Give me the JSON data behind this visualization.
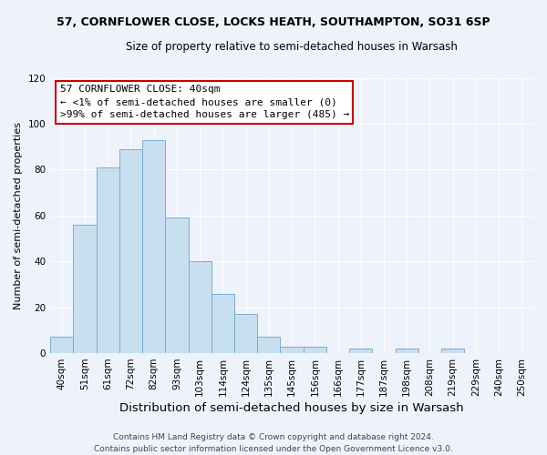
{
  "title": "57, CORNFLOWER CLOSE, LOCKS HEATH, SOUTHAMPTON, SO31 6SP",
  "subtitle": "Size of property relative to semi-detached houses in Warsash",
  "xlabel": "Distribution of semi-detached houses by size in Warsash",
  "ylabel": "Number of semi-detached properties",
  "bar_labels": [
    "40sqm",
    "51sqm",
    "61sqm",
    "72sqm",
    "82sqm",
    "93sqm",
    "103sqm",
    "114sqm",
    "124sqm",
    "135sqm",
    "145sqm",
    "156sqm",
    "166sqm",
    "177sqm",
    "187sqm",
    "198sqm",
    "208sqm",
    "219sqm",
    "229sqm",
    "240sqm",
    "250sqm"
  ],
  "bar_values": [
    7,
    56,
    81,
    89,
    93,
    59,
    40,
    26,
    17,
    7,
    3,
    3,
    0,
    2,
    0,
    2,
    0,
    2,
    0,
    0,
    0
  ],
  "bar_color": "#c8dff0",
  "bar_edge_color": "#7aaed0",
  "ylim": [
    0,
    120
  ],
  "yticks": [
    0,
    20,
    40,
    60,
    80,
    100,
    120
  ],
  "annotation_title": "57 CORNFLOWER CLOSE: 40sqm",
  "annotation_line1": "← <1% of semi-detached houses are smaller (0)",
  "annotation_line2": ">99% of semi-detached houses are larger (485) →",
  "annotation_box_color": "#ffffff",
  "annotation_box_edge": "#cc0000",
  "footer1": "Contains HM Land Registry data © Crown copyright and database right 2024.",
  "footer2": "Contains public sector information licensed under the Open Government Licence v3.0.",
  "background_color": "#eef2fb",
  "grid_color": "#ffffff",
  "title_fontsize": 9.0,
  "subtitle_fontsize": 8.5,
  "ylabel_fontsize": 8.0,
  "xlabel_fontsize": 9.5,
  "tick_fontsize": 7.5,
  "ann_fontsize": 8.0,
  "footer_fontsize": 6.5
}
